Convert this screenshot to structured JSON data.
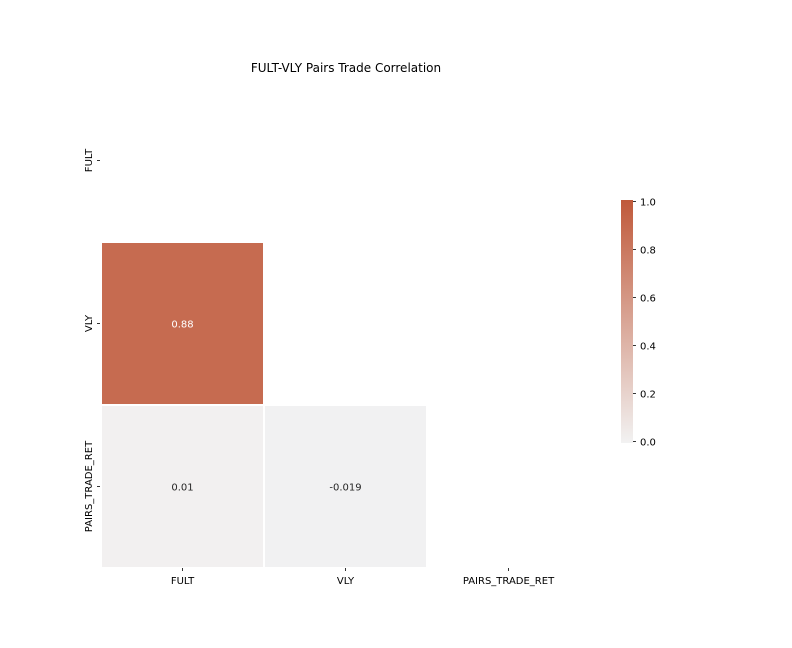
{
  "chart_data": {
    "type": "heatmap",
    "title": "FULT-VLY Pairs Trade Correlation",
    "xlabel": "",
    "ylabel": "",
    "row_labels": [
      "FULT",
      "VLY",
      "PAIRS_TRADE_RET"
    ],
    "col_labels": [
      "FULT",
      "VLY",
      "PAIRS_TRADE_RET"
    ],
    "mask": "upper-triangle-including-diagonal",
    "cells": [
      {
        "row": "VLY",
        "col": "FULT",
        "value": 0.88,
        "label": "0.88"
      },
      {
        "row": "PAIRS_TRADE_RET",
        "col": "FULT",
        "value": 0.01,
        "label": "0.01"
      },
      {
        "row": "PAIRS_TRADE_RET",
        "col": "VLY",
        "value": -0.019,
        "label": "-0.019"
      }
    ],
    "colorbar": {
      "range": [
        0.0,
        1.0
      ],
      "ticks": [
        0.0,
        0.2,
        0.4,
        0.6,
        0.8,
        1.0
      ],
      "tick_labels": [
        "0.0",
        "0.2",
        "0.4",
        "0.6",
        "0.8",
        "1.0"
      ],
      "colors": {
        "low": "#eaeef0",
        "mid": "#f2f2f2",
        "high": "#c0593a"
      }
    }
  }
}
